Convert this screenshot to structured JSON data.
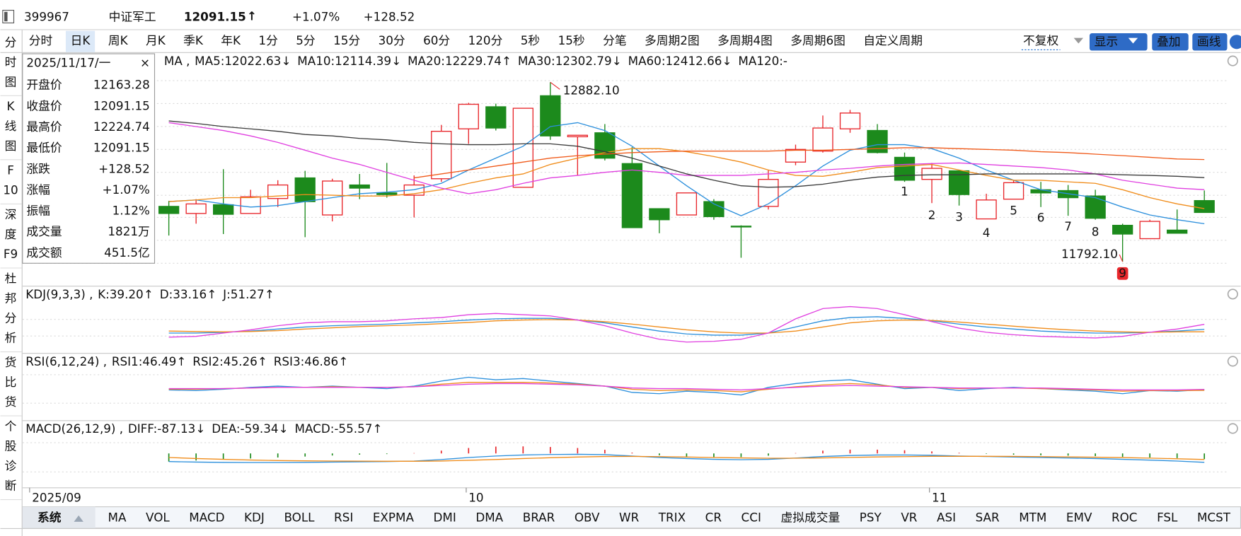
{
  "header": {
    "code": "399967",
    "name": "中证军工",
    "price": "12091.15",
    "arrow": "↑",
    "change_pct": "+1.07%",
    "change": "+128.52"
  },
  "toolbar": {
    "periods": [
      "分时",
      "日K",
      "周K",
      "月K",
      "季K",
      "年K",
      "1分",
      "5分",
      "15分",
      "30分",
      "60分",
      "120分",
      "5秒",
      "15秒",
      "分笔",
      "多周期2图",
      "多周期4图",
      "多周期6图",
      "自定义周期"
    ],
    "selected_index": 1,
    "adjust": "不复权",
    "buttons": [
      "显示",
      "叠加",
      "画线"
    ]
  },
  "sidebar": {
    "items": [
      [
        "分",
        "时",
        "图"
      ],
      [
        "K",
        "线",
        "图"
      ],
      [
        "F",
        "10"
      ],
      [
        "深",
        "度",
        "F9"
      ],
      [
        "杜",
        "邦",
        "分",
        "析"
      ],
      [
        "货",
        "比",
        "货"
      ],
      [
        "个",
        "股",
        "诊",
        "断"
      ]
    ],
    "selected_index": 1
  },
  "info_panel": {
    "date": "2025/11/17/一",
    "rows": [
      {
        "label": "开盘价",
        "value": "12163.28",
        "color": "#e8262b"
      },
      {
        "label": "收盘价",
        "value": "12091.15",
        "color": "#e8262b"
      },
      {
        "label": "最高价",
        "value": "12224.74",
        "color": "#e8262b"
      },
      {
        "label": "最低价",
        "value": "12091.15",
        "color": "#e8262b"
      },
      {
        "label": "涨跌",
        "value": "+128.52",
        "color": "#e8262b"
      },
      {
        "label": "涨幅",
        "value": "+1.07%",
        "color": "#e8262b"
      },
      {
        "label": "振幅",
        "value": "1.12%",
        "color": "#111"
      },
      {
        "label": "成交量",
        "value": "1821万",
        "color": "#111"
      },
      {
        "label": "成交额",
        "value": "451.5亿",
        "color": "#111"
      }
    ]
  },
  "chart_data": [
    {
      "type": "candlestick",
      "title": "MA ,",
      "ylim": [
        11653,
        13055
      ],
      "up_color": "#e8262b",
      "down_color": "#1c8a1c",
      "candles": {
        "open": [
          12128,
          12085,
          12138,
          12085,
          12176,
          12301,
          12076,
          12258,
          12210,
          12196,
          12296,
          12599,
          12733,
          12244,
          12800,
          12551,
          12575,
          12388,
          12114,
          12076,
          12157,
          12008,
          12128,
          12397,
          12464,
          12599,
          12589,
          12426,
          12292,
          12344,
          12052,
          12172,
          12229,
          12224,
          12191,
          12013,
          11932,
          11984,
          12163.28
        ],
        "high": [
          12162,
          12172,
          12354,
          12229,
          12287,
          12344,
          12296,
          12325,
          12392,
          12316,
          12623,
          12757,
          12752,
          12724,
          12882.1,
          12560,
          12628,
          12488,
          12114,
          12210,
          12172,
          12013,
          12349,
          12503,
          12680,
          12714,
          12628,
          12455,
          12392,
          12344,
          12205,
          12287,
          12277,
          12258,
          12229,
          12023,
          12047,
          12109,
          12224.74
        ],
        "low": [
          11951,
          12023,
          11960,
          12085,
          12124,
          11941,
          12037,
          12172,
          12181,
          12061,
          12277,
          12508,
          12589,
          12244,
          12532,
          12316,
          12407,
          11999,
          11965,
          12076,
          12047,
          11816,
          12109,
          12378,
          12455,
          12575,
          12450,
          12277,
          12148,
          12133,
          12052,
          12172,
          12124,
          12071,
          12047,
          11792.1,
          11932,
          11965,
          12091.15
        ],
        "close": [
          12085,
          12143,
          12080,
          12186,
          12258,
          12157,
          12282,
          12239,
          12200,
          12258,
          12584,
          12748,
          12604,
          12724,
          12556,
          12560,
          12421,
          11999,
          12047,
          12210,
          12066,
          12004,
          12292,
          12474,
          12604,
          12695,
          12455,
          12287,
          12359,
          12200,
          12167,
          12272,
          12210,
          12181,
          12056,
          11960,
          12037,
          11965,
          12091.15
        ]
      },
      "lines": [
        {
          "label": "MA5:12022.63↓",
          "color": "#2b8fdc",
          "values": [
            12157,
            12167,
            12143,
            12124,
            12133,
            12157,
            12181,
            12205,
            12215,
            12229,
            12268,
            12349,
            12421,
            12493,
            12613,
            12637,
            12589,
            12493,
            12373,
            12253,
            12143,
            12071,
            12143,
            12253,
            12373,
            12469,
            12503,
            12503,
            12479,
            12421,
            12349,
            12287,
            12229,
            12205,
            12181,
            12124,
            12076,
            12047,
            12022.63
          ]
        },
        {
          "label": "MA10:12114.39↓",
          "color": "#f08c1a",
          "values": [
            12157,
            12167,
            12181,
            12181,
            12191,
            12200,
            12196,
            12191,
            12191,
            12205,
            12229,
            12268,
            12301,
            12325,
            12383,
            12421,
            12455,
            12479,
            12479,
            12460,
            12431,
            12397,
            12349,
            12316,
            12311,
            12335,
            12364,
            12373,
            12383,
            12349,
            12316,
            12287,
            12287,
            12277,
            12268,
            12229,
            12181,
            12143,
            12114.39
          ]
        },
        {
          "label": "MA20:12229.74↑",
          "color": "#e040e0",
          "values": [
            12637,
            12613,
            12589,
            12556,
            12517,
            12469,
            12421,
            12383,
            12335,
            12287,
            12239,
            12205,
            12229,
            12268,
            12301,
            12316,
            12335,
            12349,
            12335,
            12316,
            12316,
            12316,
            12325,
            12335,
            12349,
            12359,
            12373,
            12383,
            12388,
            12392,
            12383,
            12373,
            12364,
            12349,
            12325,
            12287,
            12263,
            12239,
            12229.74
          ]
        },
        {
          "label": "MA30:12302.79↓",
          "color": "#3a3a3a",
          "values": [
            12647,
            12632,
            12613,
            12599,
            12584,
            12565,
            12556,
            12541,
            12532,
            12517,
            12508,
            12503,
            12503,
            12508,
            12508,
            12493,
            12460,
            12421,
            12373,
            12325,
            12287,
            12253,
            12244,
            12248,
            12263,
            12287,
            12306,
            12316,
            12320,
            12320,
            12325,
            12325,
            12325,
            12325,
            12325,
            12320,
            12316,
            12311,
            12302.79
          ]
        },
        {
          "label": "MA60:12412.66↓",
          "color": "#f05a1a",
          "values": [
            null,
            null,
            null,
            null,
            null,
            null,
            null,
            null,
            null,
            12301,
            12325,
            12349,
            12373,
            12397,
            12421,
            12436,
            12445,
            12455,
            12460,
            12464,
            12464,
            12464,
            12464,
            12469,
            12469,
            12474,
            12479,
            12484,
            12484,
            12479,
            12474,
            12469,
            12460,
            12455,
            12445,
            12436,
            12426,
            12416,
            12412.66
          ]
        },
        {
          "label": "MA120:-",
          "color": "#7b3fbf"
        }
      ],
      "annotations": [
        {
          "value": 12882.1,
          "label": "12882.10"
        },
        {
          "value": 11792.1,
          "label": "11792.10"
        }
      ],
      "wave_labels": [
        "1",
        "2",
        "3",
        "4",
        "5",
        "6",
        "7",
        "8",
        "9"
      ]
    },
    {
      "type": "line",
      "title": "KDJ(9,3,3) ,",
      "ylim": [
        -10,
        110
      ],
      "series": [
        {
          "label": "K:39.20↑",
          "color": "#2b8fdc",
          "values": [
            30,
            30,
            32,
            35,
            40,
            45,
            48,
            50,
            52,
            55,
            58,
            62,
            65,
            66,
            66,
            62,
            55,
            45,
            35,
            28,
            25,
            25,
            30,
            45,
            60,
            68,
            70,
            66,
            60,
            52,
            45,
            40,
            35,
            32,
            30,
            30,
            32,
            35,
            39.2
          ]
        },
        {
          "label": "D:33.16↑",
          "color": "#f08c1a",
          "values": [
            35,
            34,
            33,
            34,
            36,
            40,
            43,
            46,
            48,
            50,
            53,
            56,
            60,
            62,
            63,
            62,
            58,
            52,
            45,
            38,
            33,
            30,
            30,
            35,
            45,
            55,
            60,
            62,
            61,
            57,
            52,
            47,
            42,
            38,
            35,
            33,
            32,
            33,
            33.16
          ]
        },
        {
          "label": "J:51.27↑",
          "color": "#e040e0",
          "values": [
            20,
            22,
            30,
            38,
            48,
            55,
            58,
            58,
            60,
            65,
            68,
            75,
            78,
            75,
            72,
            62,
            48,
            30,
            15,
            8,
            10,
            15,
            30,
            65,
            90,
            95,
            90,
            75,
            58,
            42,
            32,
            26,
            22,
            20,
            18,
            22,
            32,
            40,
            51.27
          ]
        }
      ]
    },
    {
      "type": "line",
      "title": "RSI(6,12,24) ,",
      "ylim": [
        0,
        100
      ],
      "series": [
        {
          "label": "RSI1:46.49↑",
          "color": "#2b8fdc",
          "values": [
            46,
            45,
            47,
            50,
            52,
            50,
            52,
            50,
            48,
            52,
            60,
            66,
            62,
            64,
            60,
            56,
            52,
            42,
            40,
            44,
            42,
            38,
            50,
            56,
            60,
            62,
            55,
            48,
            50,
            45,
            48,
            50,
            48,
            46,
            44,
            40,
            45,
            44,
            46.49
          ]
        },
        {
          "label": "RSI2:45.26↑",
          "color": "#f08c1a",
          "values": [
            47,
            47,
            48,
            49,
            50,
            50,
            51,
            50,
            50,
            51,
            55,
            58,
            58,
            58,
            57,
            55,
            52,
            47,
            45,
            46,
            45,
            43,
            47,
            51,
            54,
            56,
            54,
            50,
            50,
            48,
            49,
            49,
            48,
            47,
            46,
            44,
            45,
            45,
            45.26
          ]
        },
        {
          "label": "RSI3:46.86↑",
          "color": "#e040e0",
          "values": [
            48,
            48,
            48,
            49,
            50,
            50,
            50,
            50,
            50,
            51,
            53,
            55,
            56,
            56,
            55,
            54,
            52,
            49,
            48,
            48,
            47,
            46,
            48,
            50,
            52,
            53,
            52,
            51,
            50,
            49,
            49,
            49,
            49,
            48,
            47,
            46,
            46,
            46,
            46.86
          ]
        }
      ]
    },
    {
      "type": "macd",
      "title": "MACD(26,12,9) ,",
      "ylim": [
        -300,
        200
      ],
      "up_color": "#e8262b",
      "down_color": "#1c8a1c",
      "series": [
        {
          "label": "DIFF:-87.13↓",
          "color": "#2b8fdc",
          "values": [
            -80,
            -85,
            -88,
            -90,
            -90,
            -88,
            -85,
            -82,
            -80,
            -75,
            -60,
            -40,
            -25,
            -15,
            -10,
            -8,
            -12,
            -25,
            -40,
            -50,
            -58,
            -62,
            -58,
            -45,
            -30,
            -20,
            -15,
            -15,
            -18,
            -25,
            -30,
            -35,
            -40,
            -45,
            -50,
            -58,
            -66,
            -75,
            -87.13
          ]
        },
        {
          "label": "DEA:-59.34↓",
          "color": "#f08c1a",
          "values": [
            -40,
            -50,
            -58,
            -65,
            -70,
            -73,
            -75,
            -76,
            -77,
            -77,
            -74,
            -67,
            -59,
            -50,
            -42,
            -35,
            -30,
            -29,
            -31,
            -35,
            -40,
            -44,
            -47,
            -47,
            -44,
            -39,
            -34,
            -31,
            -28,
            -28,
            -28,
            -29,
            -31,
            -34,
            -37,
            -41,
            -46,
            -52,
            -59.34
          ]
        },
        {
          "label": "MACD:-55.57↑",
          "color": "#e040e0"
        }
      ],
      "bars": [
        -80,
        -70,
        -60,
        -50,
        -40,
        -30,
        -20,
        -12,
        -6,
        4,
        28,
        54,
        68,
        70,
        64,
        54,
        36,
        8,
        -18,
        -30,
        -36,
        -36,
        -22,
        4,
        28,
        38,
        38,
        32,
        20,
        6,
        -4,
        -12,
        -18,
        -22,
        -26,
        -34,
        -40,
        -46,
        -55.57
      ]
    }
  ],
  "date_labels": [
    "2025/09",
    "10",
    "11"
  ],
  "indicator_tabs": {
    "system": "系统",
    "tabs": [
      "MA",
      "VOL",
      "MACD",
      "KDJ",
      "BOLL",
      "RSI",
      "EXPMA",
      "DMI",
      "DMA",
      "BRAR",
      "OBV",
      "WR",
      "TRIX",
      "CR",
      "CCI",
      "虚拟成交量",
      "PSY",
      "VR",
      "ASI",
      "SAR",
      "MTM",
      "EMV",
      "ROC",
      "FSL",
      "MCST"
    ],
    "selected_index": 0
  }
}
